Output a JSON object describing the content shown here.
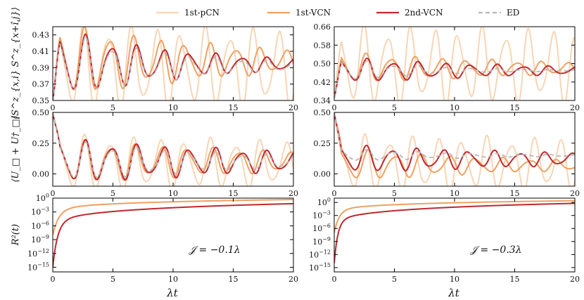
{
  "legend": [
    {
      "name": "1st-pCN",
      "color": "#f9d5b5",
      "dash": false
    },
    {
      "name": "1st-VCN",
      "color": "#f0a060",
      "dash": false
    },
    {
      "name": "2nd-VCN",
      "color": "#c0282e",
      "dash": false
    },
    {
      "name": "ED",
      "color": "#b8b8b8",
      "dash": true
    }
  ],
  "xlabel": "λt",
  "ylabels": [
    "⟨S^z_{x,i} S^z_{x+î,j}⟩",
    "⟨U_□ + U†_□⟩",
    "R²(t)"
  ],
  "annotations": [
    "𝒥 = −0.1λ",
    "𝒥 = −0.3λ"
  ],
  "chart_data": [
    {
      "type": "line",
      "panel": "top-left",
      "ylabel": "⟨S^z_{x,i} S^z_{x+î,j}⟩",
      "xlim": [
        0,
        20
      ],
      "ylim": [
        0.35,
        0.44
      ],
      "xticks": [
        0,
        5,
        10,
        15,
        20
      ],
      "yticks": [
        "0.35",
        "0.37",
        "0.39",
        "0.41",
        "0.43"
      ],
      "series": [
        {
          "name": "1st-pCN",
          "start": 0.35,
          "mean": 0.39,
          "amp": 0.045,
          "decay": 0.005,
          "omega": 3.1
        },
        {
          "name": "1st-VCN",
          "start": 0.35,
          "mean": 0.398,
          "amp": 0.04,
          "decay": 0.06,
          "omega": 3.0
        },
        {
          "name": "2nd-VCN",
          "start": 0.35,
          "mean": 0.394,
          "amp": 0.038,
          "decay": 0.09,
          "omega": 2.9
        },
        {
          "name": "ED",
          "start": 0.35,
          "mean": 0.392,
          "amp": 0.037,
          "decay": 0.1,
          "omega": 2.9
        }
      ]
    },
    {
      "type": "line",
      "panel": "top-right",
      "xlim": [
        0,
        20
      ],
      "ylim": [
        0.34,
        0.66
      ],
      "xticks": [
        0,
        5,
        10,
        15,
        20
      ],
      "yticks": [
        "0.34",
        "0.42",
        "0.50",
        "0.58",
        "0.66"
      ],
      "series": [
        {
          "name": "1st-pCN",
          "start": 0.35,
          "mean": 0.49,
          "amp": 0.15,
          "decay": 0.005,
          "omega": 3.2
        },
        {
          "name": "1st-VCN",
          "start": 0.35,
          "mean": 0.48,
          "amp": 0.06,
          "decay": 0.05,
          "omega": 3.0
        },
        {
          "name": "2nd-VCN",
          "start": 0.35,
          "mean": 0.47,
          "amp": 0.05,
          "decay": 0.06,
          "omega": 2.9
        },
        {
          "name": "ED",
          "start": 0.35,
          "mean": 0.47,
          "amp": 0.05,
          "decay": 0.15,
          "omega": 2.9
        }
      ]
    },
    {
      "type": "line",
      "panel": "middle-left",
      "ylabel": "⟨U_□ + U†_□⟩",
      "xlim": [
        0,
        20
      ],
      "ylim": [
        -0.1,
        0.5
      ],
      "xticks": [
        0,
        5,
        10,
        15,
        20
      ],
      "yticks": [
        "0.00",
        "0.25",
        "0.50"
      ],
      "series": [
        {
          "name": "1st-pCN",
          "start": 0.5,
          "mean": 0.08,
          "amp": 0.2,
          "decay": 0.01,
          "omega": 3.0
        },
        {
          "name": "1st-VCN",
          "start": 0.5,
          "mean": 0.1,
          "amp": 0.16,
          "decay": 0.04,
          "omega": 2.95
        },
        {
          "name": "2nd-VCN",
          "start": 0.5,
          "mean": 0.1,
          "amp": 0.16,
          "decay": 0.04,
          "omega": 2.9
        },
        {
          "name": "ED",
          "start": 0.5,
          "mean": 0.1,
          "amp": 0.15,
          "decay": 0.06,
          "omega": 2.9
        }
      ]
    },
    {
      "type": "line",
      "panel": "middle-right",
      "xlim": [
        0,
        20
      ],
      "ylim": [
        -0.1,
        0.5
      ],
      "xticks": [
        0,
        5,
        10,
        15,
        20
      ],
      "yticks": [
        "0.00",
        "0.25",
        "0.50"
      ],
      "series": [
        {
          "name": "1st-pCN",
          "start": 0.5,
          "mean": 0.08,
          "amp": 0.2,
          "decay": 0.005,
          "omega": 3.1
        },
        {
          "name": "1st-VCN",
          "start": 0.5,
          "mean": 0.07,
          "amp": 0.12,
          "decay": 0.06,
          "omega": 2.8
        },
        {
          "name": "2nd-VCN",
          "start": 0.5,
          "mean": 0.12,
          "amp": 0.1,
          "decay": 0.04,
          "omega": 2.95
        },
        {
          "name": "ED",
          "start": 0.5,
          "mean": 0.15,
          "amp": 0.05,
          "decay": 0.1,
          "omega": 2.9
        }
      ]
    },
    {
      "type": "line",
      "panel": "bottom-left",
      "ylabel": "R²(t)",
      "yscale": "log",
      "xlim": [
        0,
        20
      ],
      "ylim_exp": [
        -16,
        0
      ],
      "xticks": [
        0,
        5,
        10,
        15,
        20
      ],
      "yticks": [
        "10^0",
        "10^-3",
        "10^-6",
        "10^-9",
        "10^-12",
        "10^-15"
      ],
      "annotation": "𝒥 = −0.1λ",
      "series": [
        {
          "name": "1st-VCN",
          "log_start": -8,
          "log_end": -0.3,
          "knee": 0.5
        },
        {
          "name": "2nd-VCN",
          "log_start": -15,
          "log_end": -1.2,
          "knee": 0.4
        }
      ]
    },
    {
      "type": "line",
      "panel": "bottom-right",
      "yscale": "log",
      "xlim": [
        0,
        20
      ],
      "ylim_exp": [
        -16,
        1
      ],
      "xticks": [
        0,
        5,
        10,
        15,
        20
      ],
      "yticks": [
        "10^0",
        "10^-3",
        "10^-6",
        "10^-9",
        "10^-12",
        "10^-15"
      ],
      "annotation": "𝒥 = −0.3λ",
      "series": [
        {
          "name": "1st-VCN",
          "log_start": -7,
          "log_end": 0.4,
          "knee": 0.4
        },
        {
          "name": "2nd-VCN",
          "log_start": -14,
          "log_end": -0.2,
          "knee": 0.3
        }
      ]
    }
  ]
}
